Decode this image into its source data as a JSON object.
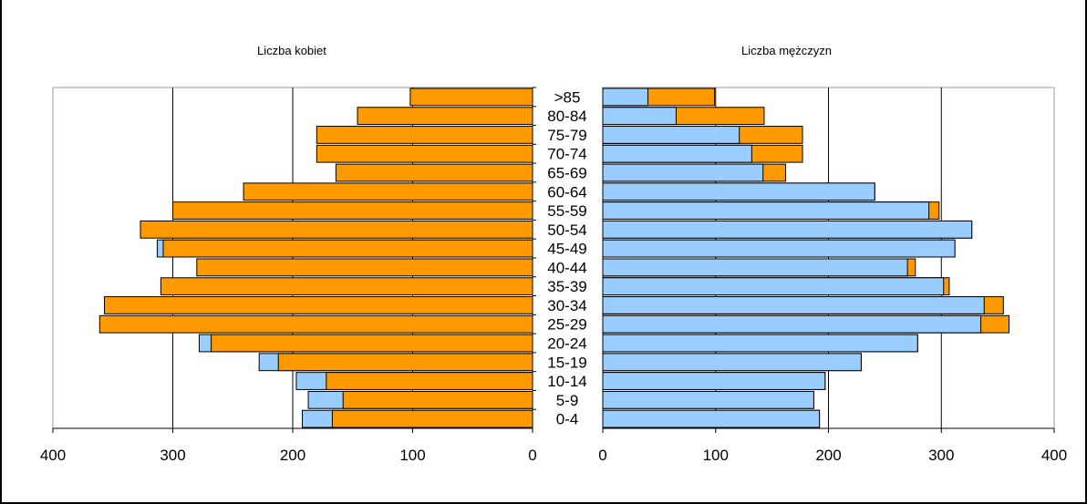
{
  "header_fragment": "",
  "chart_data": {
    "type": "bar",
    "orientation": "horizontal",
    "categories": [
      "0-4",
      "5-9",
      "10-14",
      "15-19",
      "20-24",
      "25-29",
      "30-34",
      "35-39",
      "40-44",
      "45-49",
      "50-54",
      "55-59",
      "60-64",
      "65-69",
      "70-74",
      "75-79",
      "80-84",
      ">85"
    ],
    "left_panel": {
      "title": "Liczba kobiet",
      "xlim": [
        400,
        0
      ],
      "ticks": [
        400,
        300,
        200,
        100,
        0
      ],
      "series": [
        {
          "values": [
            192,
            187,
            197,
            228,
            278,
            0,
            0,
            0,
            0,
            313,
            0,
            0,
            0,
            0,
            0,
            0,
            0,
            0
          ],
          "color": "#99ccff"
        },
        {
          "values": [
            167,
            158,
            172,
            212,
            268,
            361,
            357,
            310,
            280,
            308,
            327,
            300,
            241,
            164,
            180,
            180,
            146,
            102
          ],
          "color": "#ff9900"
        }
      ]
    },
    "right_panel": {
      "title": "Liczba mężczyzn",
      "xlim": [
        0,
        400
      ],
      "ticks": [
        0,
        100,
        200,
        300,
        400
      ],
      "series": [
        {
          "values": [
            192,
            187,
            197,
            229,
            279,
            335,
            338,
            302,
            270,
            312,
            327,
            289,
            241,
            142,
            132,
            121,
            65,
            40
          ],
          "color": "#99ccff"
        },
        {
          "values": [
            0,
            0,
            0,
            0,
            0,
            360,
            355,
            307,
            277,
            0,
            0,
            298,
            0,
            162,
            177,
            177,
            143,
            99
          ],
          "color": "#ff9900"
        }
      ]
    },
    "grid": true,
    "legend": "none"
  }
}
